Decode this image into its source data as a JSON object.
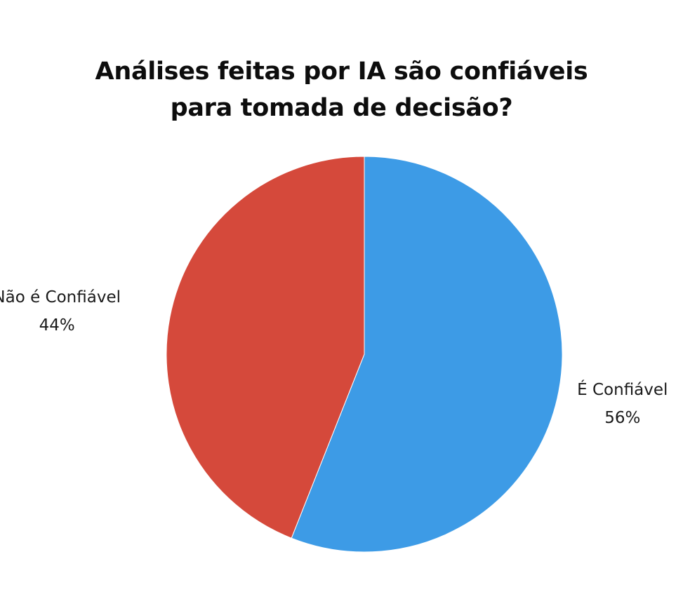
{
  "chart_data": {
    "type": "pie",
    "title": "Análises feitas por IA são confiáveis para tomada de decisão?",
    "title_lines": [
      "Análises feitas por IA são confiáveis",
      "para tomada de decisão?"
    ],
    "slices": [
      {
        "label": "É Confiável",
        "value": 56,
        "display": "56%",
        "color": "#3d9be6"
      },
      {
        "label": "Não é Confiável",
        "value": 44,
        "display": "44%",
        "color": "#d5493b"
      }
    ],
    "legend": "none",
    "labels_outside": true
  }
}
